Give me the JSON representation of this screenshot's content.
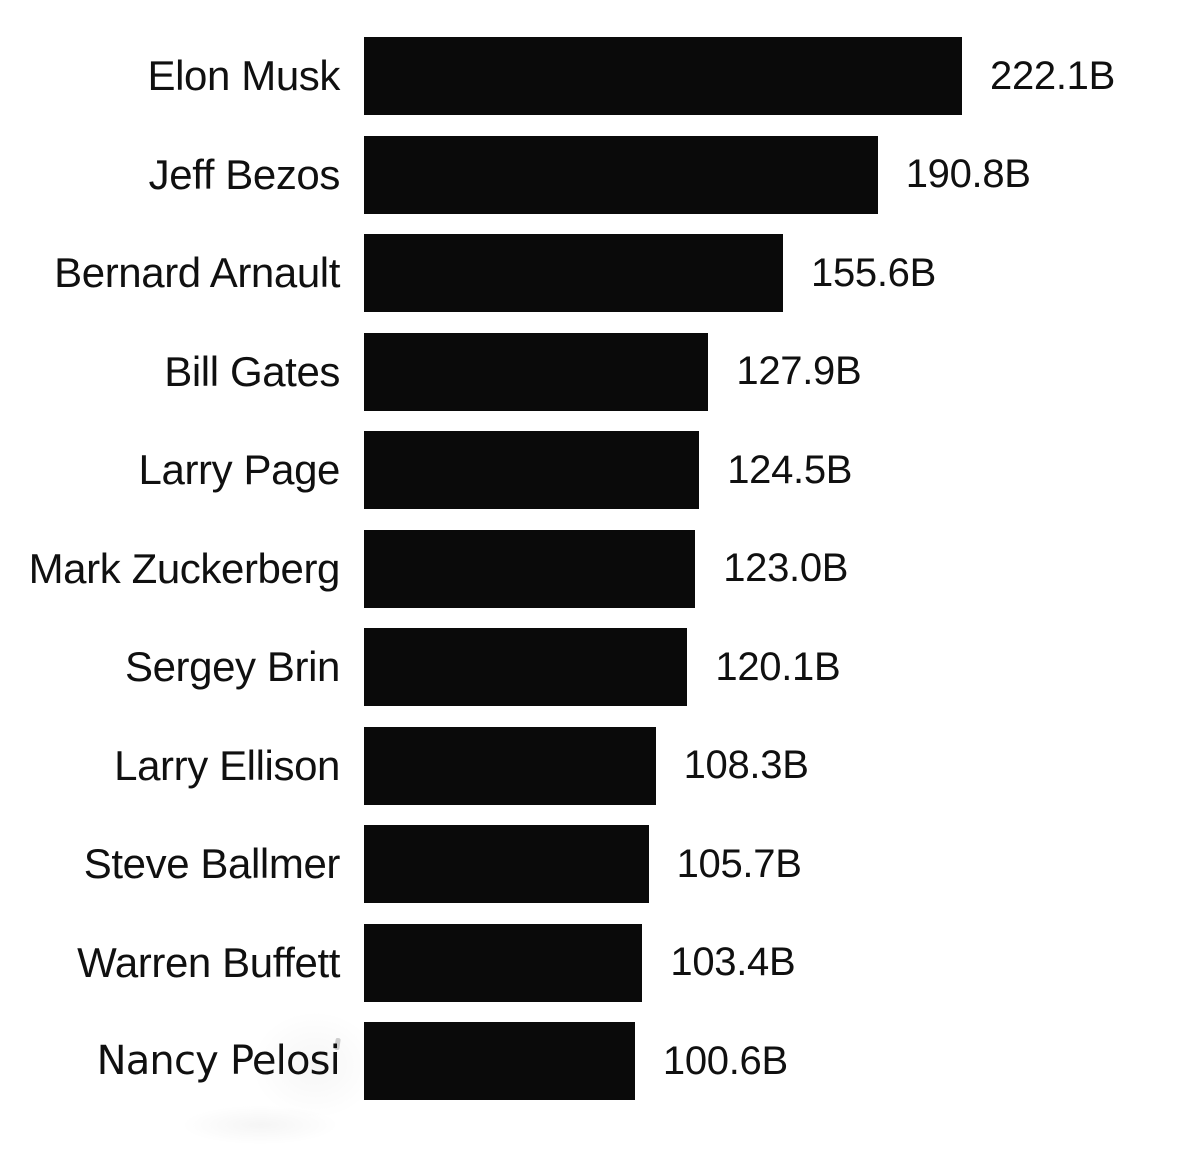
{
  "chart_data": {
    "type": "bar",
    "orientation": "horizontal",
    "title": "",
    "categories": [
      "Elon Musk",
      "Jeff Bezos",
      "Bernard Arnault",
      "Bill Gates",
      "Larry Page",
      "Mark Zuckerberg",
      "Sergey Brin",
      "Larry Ellison",
      "Steve Ballmer",
      "Warren Buffett",
      "Nancy Pelosi"
    ],
    "values": [
      222.1,
      190.8,
      155.6,
      127.9,
      124.5,
      123.0,
      120.1,
      108.3,
      105.7,
      103.4,
      100.6
    ],
    "value_labels": [
      "222.1B",
      "190.8B",
      "155.6B",
      "127.9B",
      "124.5B",
      "123.0B",
      "120.1B",
      "108.3B",
      "105.7B",
      "103.4B",
      "100.6B"
    ],
    "unit": "B",
    "xlim": [
      0,
      222.1
    ],
    "grid": false,
    "legend": false,
    "bar_color": "#0a0a0a",
    "text_color": "#101010",
    "background_color": "#ffffff",
    "layout": {
      "category_labels": "right-aligned left of bars",
      "value_labels": "right of bar ends",
      "last_category_different_typeface": true
    }
  }
}
